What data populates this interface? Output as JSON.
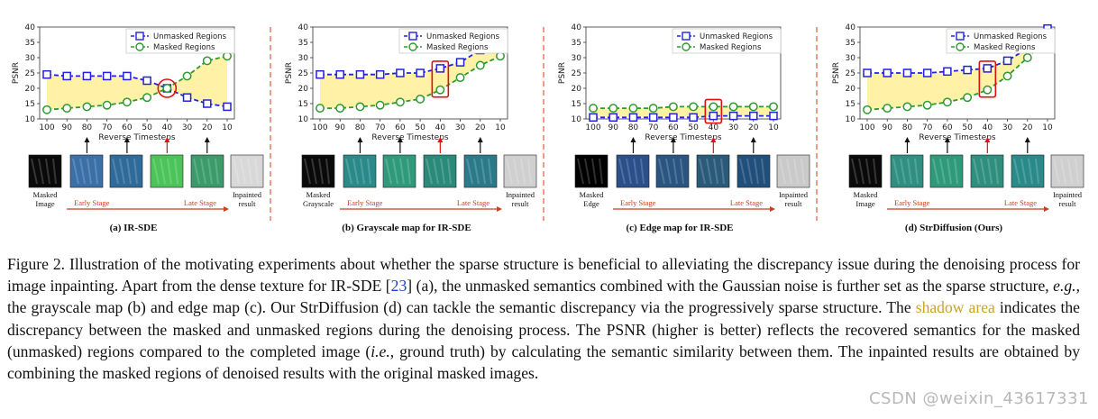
{
  "colors": {
    "unmasked": "#2222dd",
    "masked": "#2e9a2e",
    "shade": "#fff2a6",
    "highlight": "#e01010",
    "stage_arrow": "#c8401e",
    "cite": "#1f3fd0",
    "shadow_text": "#c9a227"
  },
  "chart_data": [
    {
      "type": "line",
      "title": "(a) IR-SDE",
      "xlabel": "Reverse Timesteps",
      "ylabel": "PSNR",
      "x": [
        100,
        90,
        80,
        70,
        60,
        50,
        40,
        30,
        20,
        10
      ],
      "ylim": [
        10,
        40
      ],
      "yticks": [
        10,
        15,
        20,
        25,
        30,
        35,
        40
      ],
      "highlight_x": 40,
      "highlight_shape": "circle",
      "legend": "top-right",
      "series": [
        {
          "name": "Unmasked Regions",
          "values": [
            24.5,
            24,
            24,
            24,
            24,
            22.5,
            20,
            17,
            15,
            14
          ]
        },
        {
          "name": "Masked Regions",
          "values": [
            13,
            13.5,
            14,
            14.5,
            15.5,
            17,
            20,
            24,
            29,
            30.5
          ]
        }
      ],
      "bottom_labels": {
        "left": "Masked\nImage",
        "right": "Inpainted\nresult",
        "early": "Early Stage",
        "late": "Late Stage"
      }
    },
    {
      "type": "line",
      "title": "(b) Grayscale map for IR-SDE",
      "xlabel": "Reverse Timesteps",
      "ylabel": "PSNR",
      "x": [
        100,
        90,
        80,
        70,
        60,
        50,
        40,
        30,
        20,
        10
      ],
      "ylim": [
        10,
        40
      ],
      "yticks": [
        10,
        15,
        20,
        25,
        30,
        35,
        40
      ],
      "highlight_x": 40,
      "highlight_shape": "rect",
      "legend": "top-right",
      "series": [
        {
          "name": "Unmasked Regions",
          "values": [
            24.5,
            24.5,
            24.5,
            24.5,
            25,
            25,
            26.5,
            28.5,
            32.5,
            37
          ]
        },
        {
          "name": "Masked Regions",
          "values": [
            13.5,
            13.5,
            14,
            14.5,
            15.5,
            16.5,
            19.5,
            23.5,
            27.5,
            30.5
          ]
        }
      ],
      "bottom_labels": {
        "left": "Masked\nGrayscale",
        "right": "Inpainted\nresult",
        "early": "Early Stage",
        "late": "Late Stage"
      }
    },
    {
      "type": "line",
      "title": "(c) Edge map for IR-SDE",
      "xlabel": "Reverse Timesteps",
      "ylabel": "PSNR",
      "x": [
        100,
        90,
        80,
        70,
        60,
        50,
        40,
        30,
        20,
        10
      ],
      "ylim": [
        10,
        40
      ],
      "yticks": [
        10,
        15,
        20,
        25,
        30,
        35,
        40
      ],
      "highlight_x": 40,
      "highlight_shape": "rect",
      "legend": "top-right",
      "series": [
        {
          "name": "Unmasked Regions",
          "values": [
            10.5,
            10.5,
            10.5,
            10.5,
            10.5,
            10.5,
            11,
            11,
            11,
            11
          ]
        },
        {
          "name": "Masked Regions",
          "values": [
            13.5,
            13.5,
            13.5,
            13.5,
            14,
            14,
            14,
            14,
            14,
            14
          ]
        }
      ],
      "bottom_labels": {
        "left": "Masked\nEdge",
        "right": "Inpainted\nresult",
        "early": "Early Stage",
        "late": "Late Stage"
      }
    },
    {
      "type": "line",
      "title": "(d) StrDiffusion (Ours)",
      "xlabel": "Reverse Timesteps",
      "ylabel": "PSNR",
      "x": [
        100,
        90,
        80,
        70,
        60,
        50,
        40,
        30,
        20,
        10
      ],
      "ylim": [
        10,
        40
      ],
      "yticks": [
        10,
        15,
        20,
        25,
        30,
        35,
        40
      ],
      "highlight_x": 40,
      "highlight_shape": "rect",
      "legend": "top-right",
      "series": [
        {
          "name": "Unmasked Regions",
          "values": [
            25,
            25,
            25,
            25,
            25.5,
            26,
            26.5,
            29,
            33,
            39.5
          ]
        },
        {
          "name": "Masked Regions",
          "values": [
            13,
            13.5,
            14,
            14.5,
            15.5,
            17,
            19.5,
            24,
            30,
            36
          ]
        }
      ],
      "bottom_labels": {
        "left": "Masked\nImage",
        "right": "Inpainted\nresult",
        "early": "Early Stage",
        "late": "Late Stage"
      }
    }
  ],
  "caption": {
    "p1": "Figure 2.  Illustration of the motivating experiments about whether the sparse structure is beneficial to alleviating the discrepancy issue during the denoising process for image inpainting. Apart from the dense texture for IR-SDE [",
    "cite": "23",
    "p2": "] (a), the unmasked semantics combined with the Gaussian noise is further set as the sparse structure, ",
    "eg": "e.g.",
    "p3": ", the grayscale map (b) and edge map (c).  Our StrDiffusion (d) can tackle the semantic discrepancy via the progressively sparse structure. The ",
    "shadow": "shadow area",
    "p4": " indicates the discrepancy between the masked and unmasked regions during the denoising process. The PSNR (higher is better) reflects the recovered semantics for the masked (unmasked) regions compared to the completed image (",
    "ie": "i.e.",
    "p5": ", ground truth) by calculating the semantic similarity between them. The inpainted results are obtained by combining the masked regions of denoised results with the original masked images."
  },
  "watermark": "CSDN @weixin_43617331"
}
